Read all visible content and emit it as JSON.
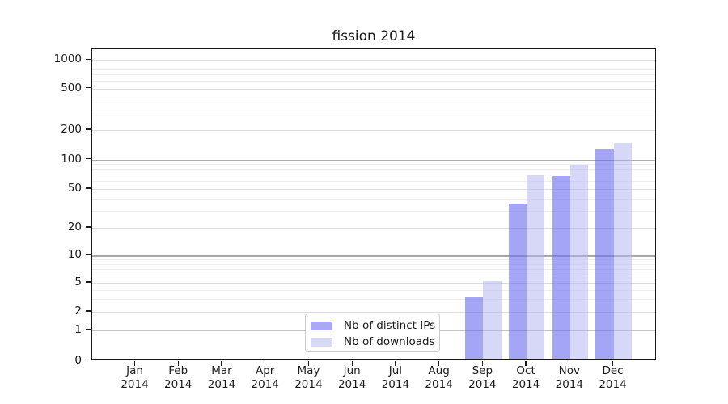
{
  "chart_data": {
    "type": "bar",
    "title": "fission 2014",
    "categories": [
      "Jan",
      "Feb",
      "Mar",
      "Apr",
      "May",
      "Jun",
      "Jul",
      "Aug",
      "Sep",
      "Oct",
      "Nov",
      "Dec"
    ],
    "year_label": "2014",
    "series": [
      {
        "name": "Nb of distinct IPs",
        "values": [
          0,
          0,
          0,
          0,
          0,
          0,
          0,
          0,
          3,
          34,
          65,
          120
        ],
        "bar_color": "rgba(110,110,240,0.62)",
        "legend_color": "#a9a9f4"
      },
      {
        "name": "Nb of downloads",
        "values": [
          0,
          0,
          0,
          0,
          0,
          0,
          0,
          0,
          5,
          66,
          85,
          140
        ],
        "bar_color": "rgba(175,175,240,0.5)",
        "legend_color": "#d8d8f7"
      }
    ],
    "xlabel": "",
    "ylabel": "",
    "yscale": "symlog",
    "yticks": [
      0,
      1,
      2,
      5,
      10,
      20,
      50,
      100,
      200,
      500,
      1000
    ],
    "ylim": [
      0,
      1265
    ],
    "grid": "both",
    "legend_position": "inside-lower-center-left"
  }
}
